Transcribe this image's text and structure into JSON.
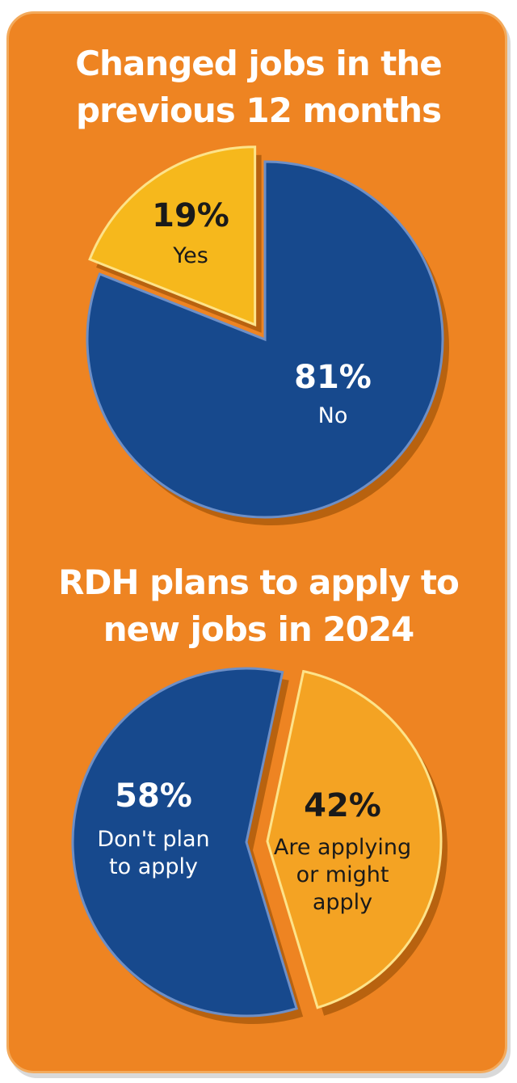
{
  "charts": [
    {
      "title_lines": [
        "Changed jobs in the",
        "previous 12 months"
      ]
    },
    {
      "title_lines": [
        "RDH plans to apply to",
        "new jobs in 2024"
      ]
    }
  ],
  "colors": {
    "background": "#ee8422",
    "blue": "#17498d",
    "yellow": "#f6b81c",
    "amber": "#f4a323",
    "dark_text": "#1a1a1a"
  },
  "chart_data": [
    {
      "type": "pie",
      "title": "Changed jobs in the previous 12 months",
      "slices": [
        {
          "label": "Yes",
          "value": 19,
          "display": "19%",
          "color": "#f6b81c",
          "exploded": true
        },
        {
          "label": "No",
          "value": 81,
          "display": "81%",
          "color": "#17498d",
          "exploded": false
        }
      ]
    },
    {
      "type": "pie",
      "title": "RDH plans to apply to new jobs in 2024",
      "slices": [
        {
          "label_lines": [
            "Don't plan",
            "to apply"
          ],
          "value": 58,
          "display": "58%",
          "color": "#17498d"
        },
        {
          "label_lines": [
            "Are applying",
            "or might",
            "apply"
          ],
          "value": 42,
          "display": "42%",
          "color": "#f4a323"
        }
      ]
    }
  ]
}
